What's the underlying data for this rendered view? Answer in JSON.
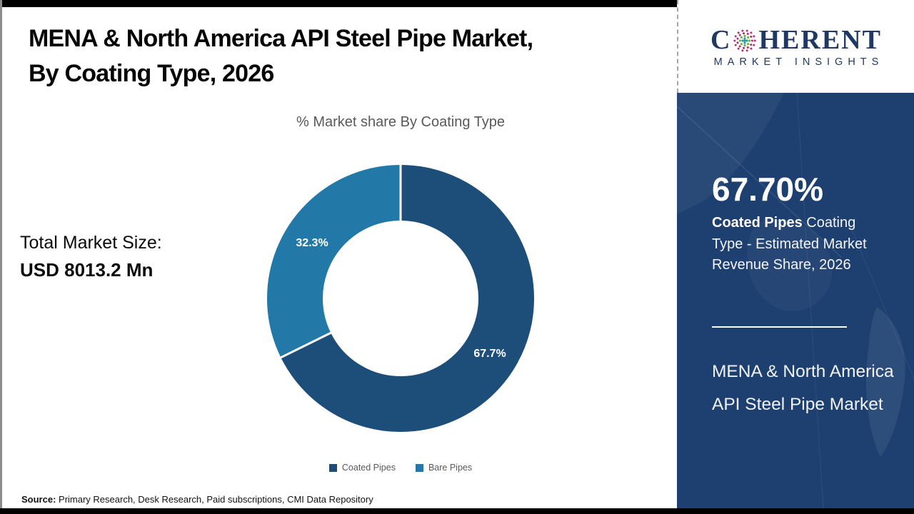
{
  "title": {
    "line1": "MENA & North America API Steel Pipe Market,",
    "line2": "By Coating Type, 2026"
  },
  "chart": {
    "subtitle": "% Market share By Coating Type"
  },
  "chart_data": {
    "type": "pie",
    "subtype": "donut",
    "title": "% Market share By Coating Type",
    "categories": [
      "Coated Pipes",
      "Bare Pipes"
    ],
    "values": [
      67.7,
      32.3
    ],
    "labels": [
      "67.7%",
      "32.3%"
    ],
    "colors": [
      "#1d4e79",
      "#2279a7"
    ],
    "start_angle_deg": 0,
    "direction": "clockwise",
    "legend_position": "bottom",
    "hole": true
  },
  "total_market": {
    "label": "Total Market Size:",
    "value": "USD 8013.2 Mn"
  },
  "source": {
    "label": "Source:",
    "text": " Primary Research, Desk Research, Paid subscriptions, CMI Data Repository"
  },
  "sidebar": {
    "logo": {
      "brand_pre": "C",
      "brand_post": "HERENT",
      "subtitle": "MARKET INSIGHTS",
      "brand_color": "#1f3864",
      "globe_icon": "dotted-globe",
      "globe_colors": [
        "#b82d82",
        "#2b9aa0",
        "#6fae44",
        "#a5316e"
      ]
    },
    "stat_value": "67.70%",
    "stat_bold": "Coated Pipes",
    "stat_rest": " Coating Type - Estimated Market Revenue Share, 2026",
    "market_name": "MENA & North America API Steel Pipe Market",
    "background": "#1e4070"
  }
}
